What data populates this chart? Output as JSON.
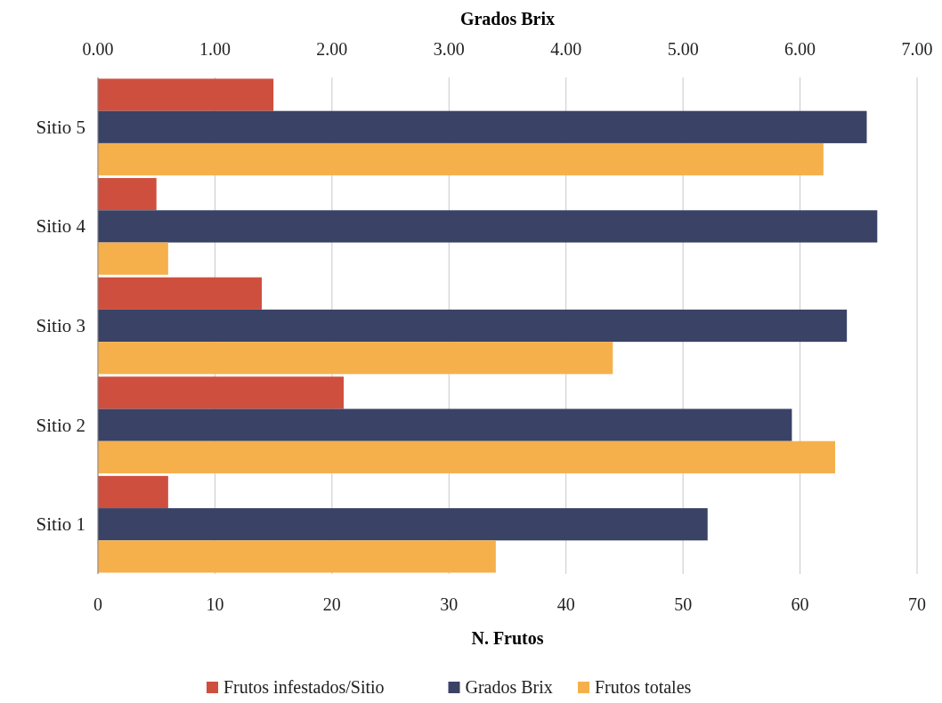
{
  "chart_data": {
    "type": "bar",
    "orientation": "horizontal",
    "xlabel": "N. Frutos",
    "x2label": "Grados Brix",
    "categories": [
      "Sitio 5",
      "Sitio 4",
      "Sitio 3",
      "Sitio 2",
      "Sitio 1"
    ],
    "series": [
      {
        "name": "Frutos infestados/Sitio",
        "color": "#cf4f3e",
        "values": [
          15,
          5,
          14,
          21,
          6
        ]
      },
      {
        "name": "Grados Brix",
        "color": "#3a4266",
        "axis": "x2",
        "values": [
          6.57,
          6.66,
          6.4,
          5.93,
          5.21
        ]
      },
      {
        "name": "Frutos totales",
        "color": "#f5b04c",
        "values": [
          62,
          6,
          44,
          63,
          34
        ]
      }
    ],
    "xlim": [
      0,
      70
    ],
    "xticks": [
      0,
      10,
      20,
      30,
      40,
      50,
      60,
      70
    ],
    "x2lim": [
      0,
      7
    ],
    "x2ticks": [
      {
        "value": 0,
        "label": "0.00"
      },
      {
        "value": 1,
        "label": "1.00"
      },
      {
        "value": 2,
        "label": "2.00"
      },
      {
        "value": 3,
        "label": "3.00"
      },
      {
        "value": 4,
        "label": "4.00"
      },
      {
        "value": 5,
        "label": "5.00"
      },
      {
        "value": 6,
        "label": "6.00"
      },
      {
        "value": 7,
        "label": "7.00"
      }
    ],
    "grid": "x",
    "legend": "bottom"
  }
}
